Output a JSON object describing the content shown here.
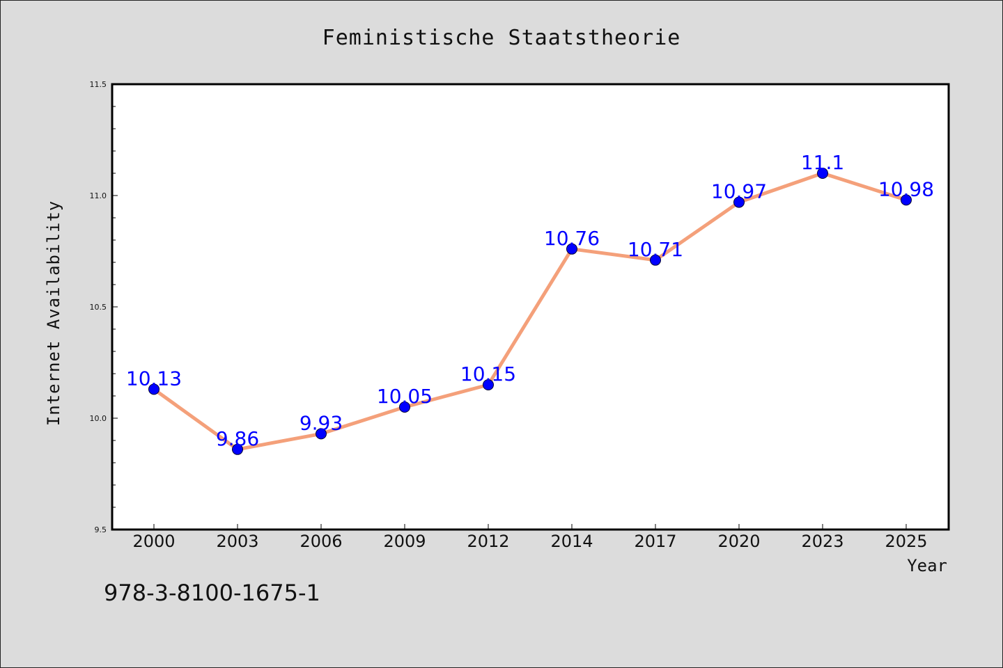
{
  "chart_data": {
    "type": "line",
    "title": "Feministische Staatstheorie",
    "xlabel": "Year",
    "ylabel": "Internet Availability",
    "categories": [
      "2000",
      "2003",
      "2006",
      "2009",
      "2012",
      "2014",
      "2017",
      "2020",
      "2023",
      "2025"
    ],
    "series": [
      {
        "values": [
          10.13,
          9.86,
          9.93,
          10.05,
          10.15,
          10.76,
          10.71,
          10.97,
          11.1,
          10.98
        ],
        "labels": [
          "10.13",
          "9.86",
          "9.93",
          "10.05",
          "10.15",
          "10.76",
          "10.71",
          "10.97",
          "11.1",
          "10.98"
        ],
        "line_color": "#f4a07a",
        "marker_color": "#0000ff",
        "label_color": "#0000ff"
      }
    ],
    "ylim": [
      9.5,
      11.5
    ],
    "yticks": [
      "9.5",
      "10.0",
      "10.5",
      "11.0",
      "11.5"
    ],
    "grid": false,
    "legend": "none"
  },
  "footer": {
    "code": "978-3-8100-1675-1"
  }
}
